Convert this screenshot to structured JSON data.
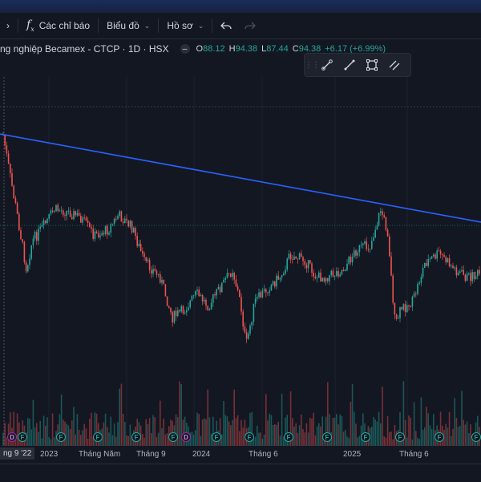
{
  "toolbar": {
    "left_chevron": "›",
    "indicators_label": "Các chỉ báo",
    "chart_label": "Biểu đồ",
    "profile_label": "Hồ sơ"
  },
  "legend": {
    "title": "ng nghiệp Becamex - CTCP · 1D · HSX",
    "o_label": "O",
    "o_value": "88.12",
    "h_label": "H",
    "h_value": "94.38",
    "l_label": "L",
    "l_value": "87.44",
    "c_label": "C",
    "c_value": "94.38",
    "change": "+6.17 (+6.99%)"
  },
  "drawing_tools": [
    "brush-icon",
    "trend-line-icon",
    "rectangle-icon",
    "parallel-channel-icon"
  ],
  "colors": {
    "up": "#26a69a",
    "down": "#ef5350",
    "trendline": "#2962ff",
    "background": "#131722"
  },
  "xaxis": {
    "current_label": "ng 9 '22",
    "labels": [
      "2023",
      "Tháng Năm",
      "Tháng 9",
      "2024",
      "Tháng 6",
      "2025",
      "Tháng 6"
    ]
  },
  "events": [
    "D",
    "F",
    "F",
    "F",
    "F",
    "F",
    "D",
    "F",
    "F",
    "F",
    "F",
    "F",
    "F",
    "F",
    "F"
  ]
}
